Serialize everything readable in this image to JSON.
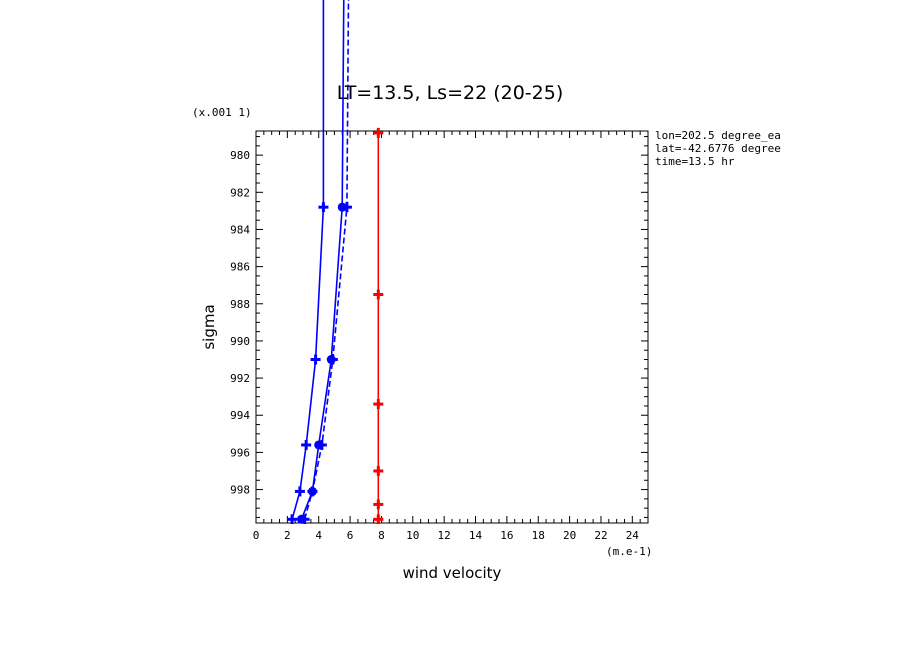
{
  "chart_data": {
    "type": "line",
    "title": "LT=13.5, Ls=22 (20-25)",
    "xlabel": "wind velocity",
    "ylabel": "sigma",
    "x_unit": "(m.e-1)",
    "y_unit": "(x.001 1)",
    "xlim": [
      0,
      25
    ],
    "ylim": [
      999.8,
      978.7
    ],
    "x_ticks": [
      0,
      2,
      4,
      6,
      8,
      10,
      12,
      14,
      16,
      18,
      20,
      22,
      24
    ],
    "y_ticks": [
      980,
      982,
      984,
      986,
      988,
      990,
      992,
      994,
      996,
      998
    ],
    "grid": false,
    "annotations": [
      "lon=202.5 degree_ea",
      "lat=-42.6776 degree",
      "time=13.5 hr"
    ],
    "series": [
      {
        "color": "#0000ff",
        "dash": "solid",
        "marker": "plus",
        "points": [
          [
            2.3,
            999.6
          ],
          [
            2.8,
            998.1
          ],
          [
            3.2,
            995.6
          ],
          [
            3.8,
            991.0
          ],
          [
            4.3,
            982.8
          ],
          [
            4.3,
            960.0
          ]
        ]
      },
      {
        "color": "#0000ff",
        "dash": "dashed",
        "marker": "plus",
        "points": [
          [
            3.1,
            999.6
          ],
          [
            3.6,
            998.1
          ],
          [
            4.2,
            995.6
          ],
          [
            4.9,
            991.0
          ],
          [
            5.8,
            982.8
          ],
          [
            6.0,
            960.0
          ]
        ]
      },
      {
        "color": "#0000ff",
        "dash": "solid",
        "marker": "circle",
        "points": [
          [
            2.9,
            999.6
          ],
          [
            3.6,
            998.1
          ],
          [
            4.0,
            995.6
          ],
          [
            4.8,
            991.0
          ],
          [
            5.5,
            982.8
          ],
          [
            5.7,
            960.0
          ]
        ]
      },
      {
        "color": "#ff0000",
        "dash": "solid",
        "marker": "plus",
        "points": [
          [
            7.8,
            999.6
          ],
          [
            7.8,
            998.8
          ],
          [
            7.8,
            997.0
          ],
          [
            7.8,
            993.4
          ],
          [
            7.8,
            987.5
          ],
          [
            7.8,
            978.8
          ]
        ]
      }
    ]
  }
}
